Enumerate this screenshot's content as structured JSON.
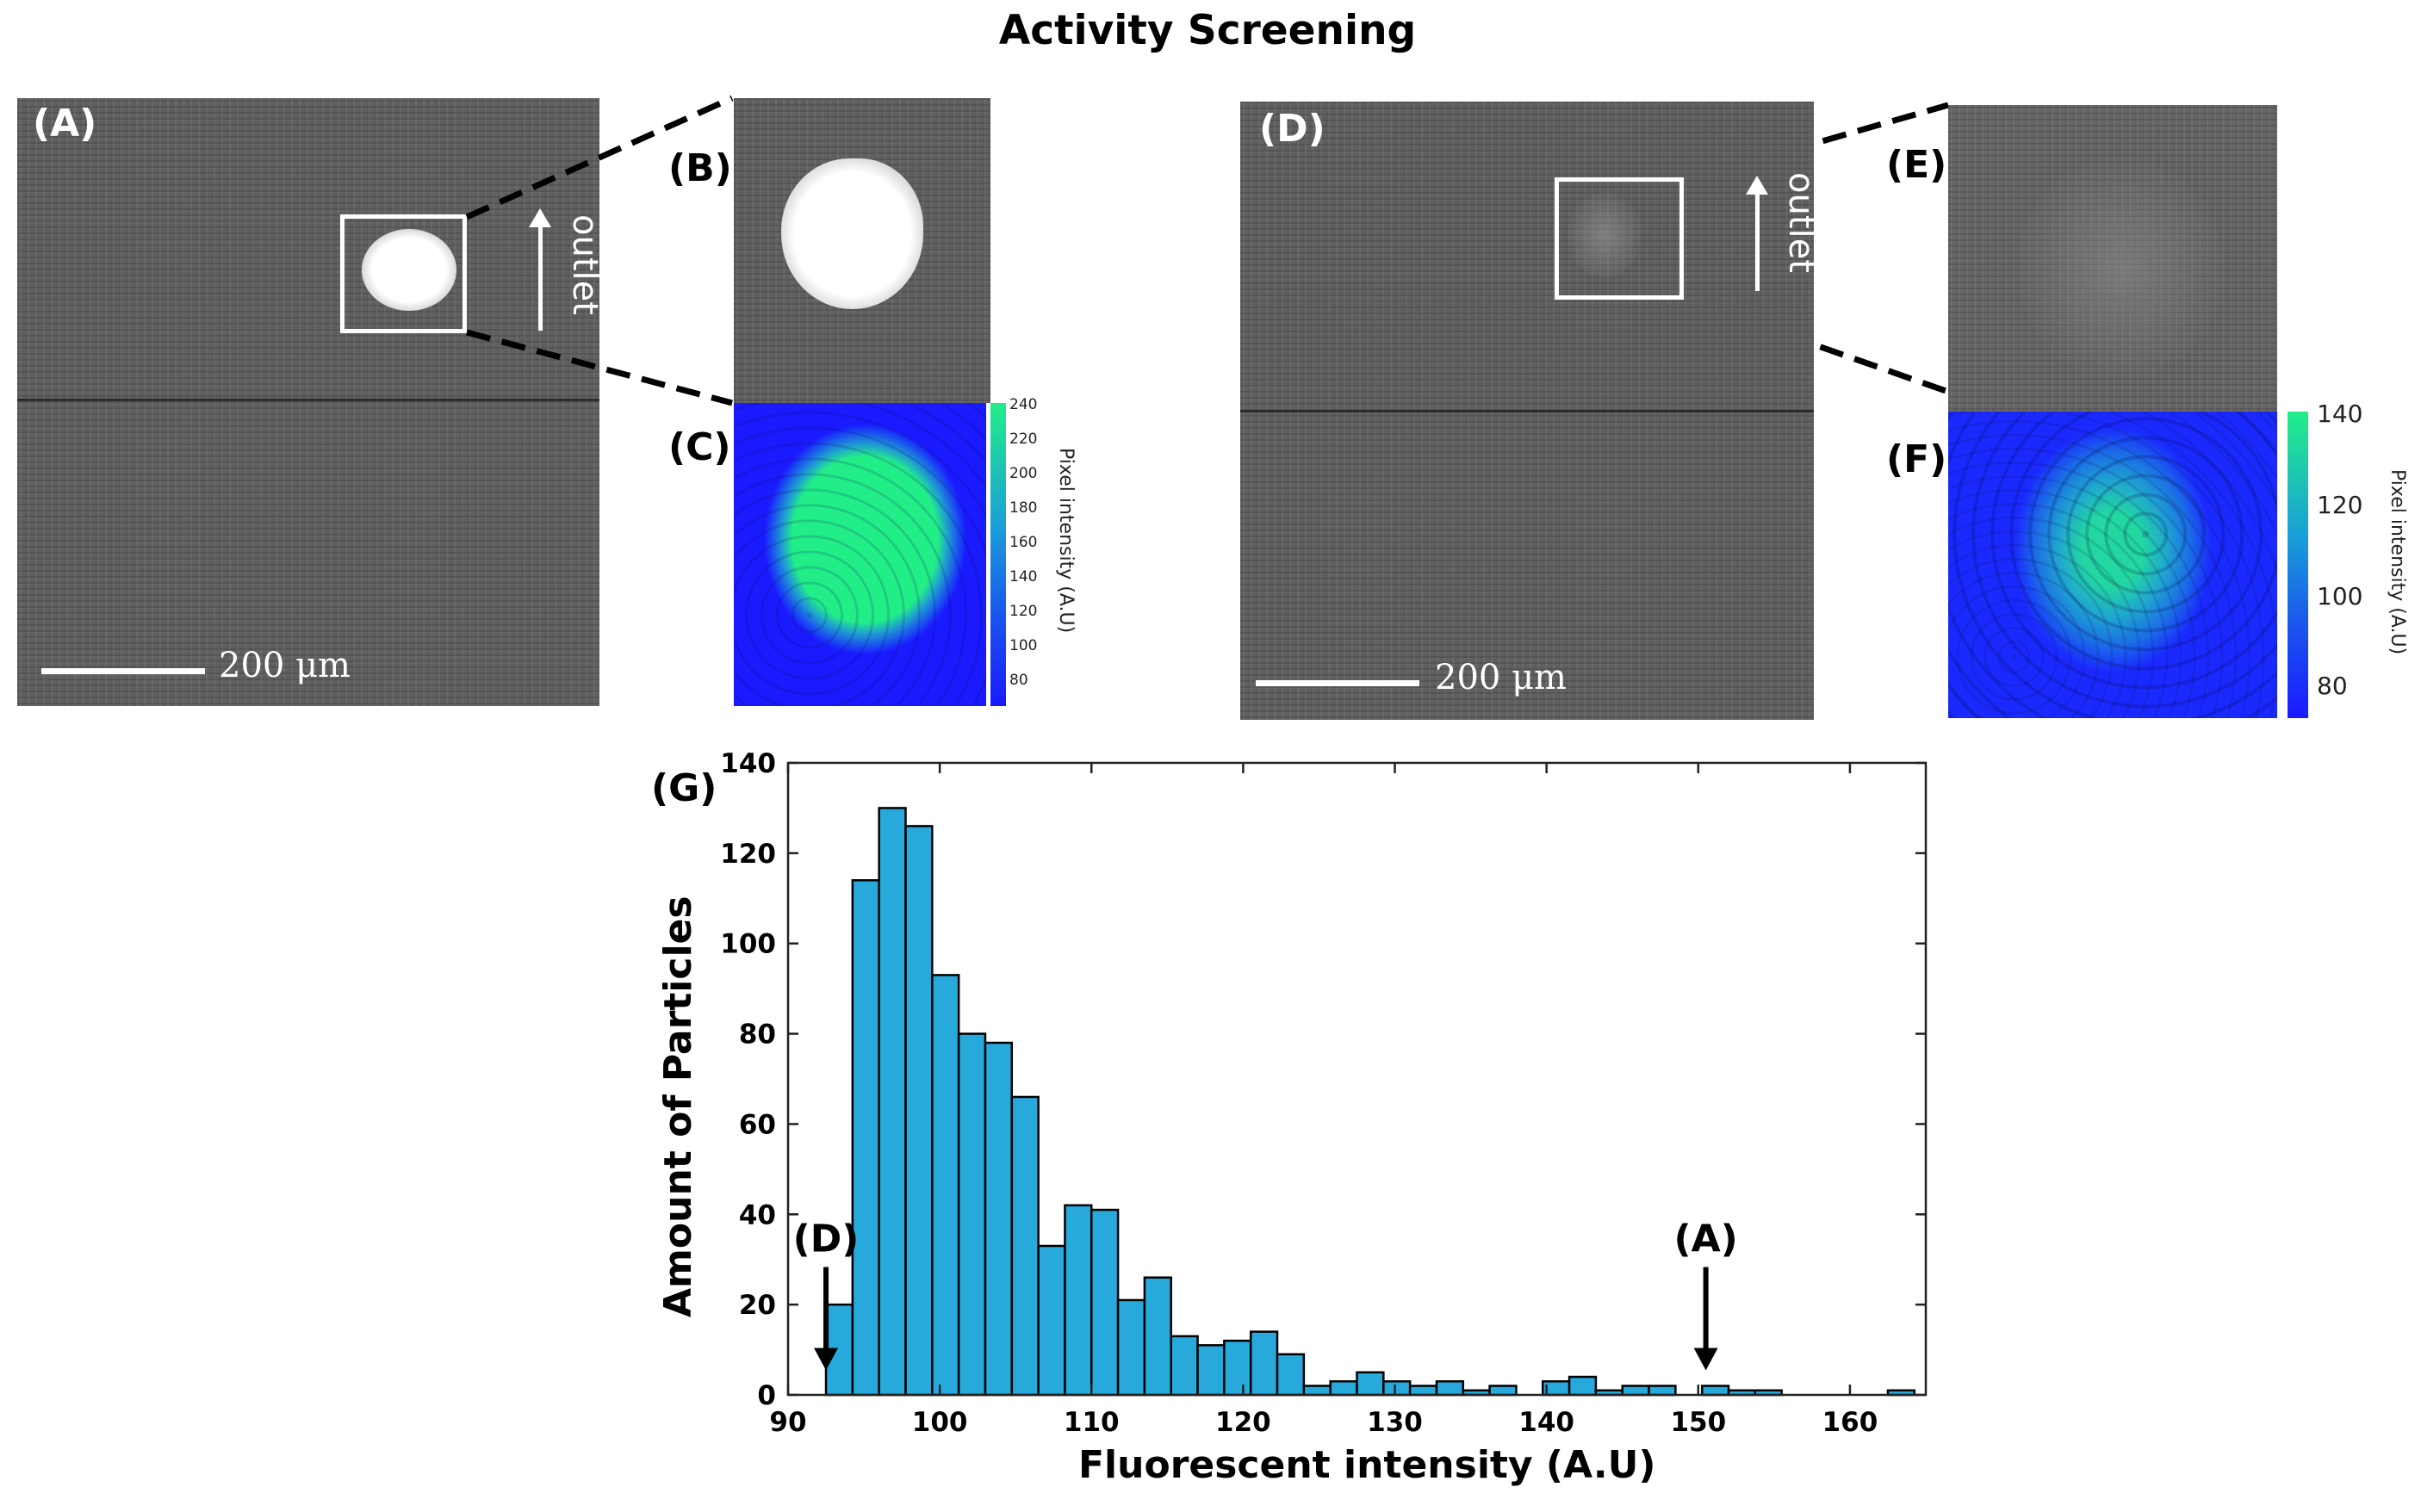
{
  "title": "Activity Screening",
  "panels": {
    "A": "(A)",
    "B": "(B)",
    "C": "(C)",
    "D": "(D)",
    "E": "(E)",
    "F": "(F)",
    "G": "(G)"
  },
  "scalebar_label": "200 μm",
  "flow_label": "outlet",
  "colorbar_C": {
    "label": "Pixel intensity (A.U)",
    "ticks": [
      "240",
      "220",
      "200",
      "180",
      "160",
      "140",
      "120",
      "100",
      "80"
    ]
  },
  "colorbar_F": {
    "label": "Pixel intensity (A.U)",
    "ticks": [
      "140",
      "120",
      "100",
      "80"
    ]
  },
  "colors": {
    "bar_fill": "#27a9dc",
    "colormap_low": "#1a1aff",
    "colormap_high": "#22ee88",
    "micrograph_bg": "#5d5d5d"
  },
  "chart_data": {
    "type": "bar",
    "xlabel": "Fluorescent intensity (A.U)",
    "ylabel": "Amount of Particles",
    "xlim": [
      90,
      165
    ],
    "ylim": [
      0,
      140
    ],
    "xticks": [
      90,
      100,
      110,
      120,
      130,
      140,
      150,
      160
    ],
    "yticks": [
      0,
      20,
      40,
      60,
      80,
      100,
      120,
      140
    ],
    "bin_start": 92.5,
    "bin_width": 1.75,
    "values": [
      20,
      114,
      130,
      126,
      93,
      80,
      78,
      66,
      33,
      42,
      41,
      21,
      26,
      13,
      11,
      12,
      14,
      9,
      2,
      3,
      5,
      3,
      2,
      3,
      1,
      2,
      0,
      3,
      4,
      1,
      2,
      2,
      0,
      2,
      1,
      1,
      0,
      0,
      0,
      0,
      1
    ],
    "annotations": [
      {
        "text": "(D)",
        "x": 92.5
      },
      {
        "text": "(A)",
        "x": 150.5
      }
    ]
  }
}
